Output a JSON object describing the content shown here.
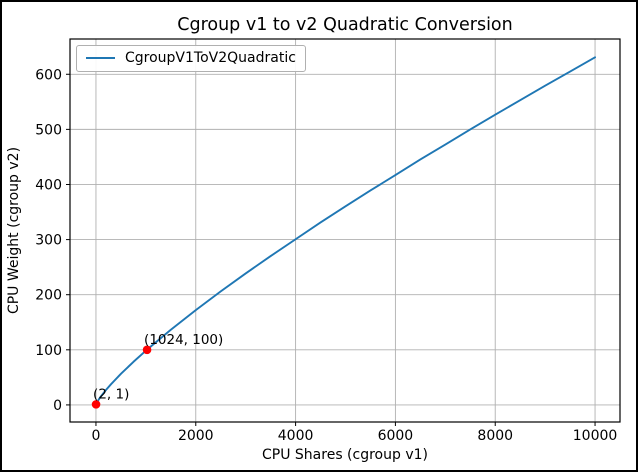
{
  "chart_data": {
    "type": "line",
    "title": "Cgroup v1 to v2 Quadratic Conversion",
    "xlabel": "CPU Shares (cgroup v1)",
    "ylabel": "CPU Weight (cgroup v2)",
    "grid": true,
    "legend_position": "upper left",
    "xlim": [
      -520,
      10500
    ],
    "ylim": [
      -31,
      664
    ],
    "xticks": [
      0,
      2000,
      4000,
      6000,
      8000,
      10000
    ],
    "yticks": [
      0,
      100,
      200,
      300,
      400,
      500,
      600
    ],
    "legend": {
      "entries": [
        {
          "label": "CgroupV1ToV2Quadratic",
          "color": "#1f77b4"
        }
      ]
    },
    "series": [
      {
        "name": "CgroupV1ToV2Quadratic",
        "color": "#1f77b4",
        "x": [
          2,
          50,
          100,
          200,
          300,
          500,
          750,
          1000,
          1024,
          1500,
          2000,
          2500,
          3000,
          3500,
          4000,
          4500,
          5000,
          5500,
          6000,
          6500,
          7000,
          7500,
          8000,
          8500,
          9000,
          9500,
          10000
        ],
        "y": [
          1.0,
          9.1,
          15.6,
          27.1,
          37.4,
          56.4,
          78.1,
          98.4,
          100.3,
          136.4,
          172.0,
          206.0,
          238.6,
          270.1,
          300.6,
          331.1,
          360.4,
          389.2,
          417.1,
          445.4,
          472.4,
          499.9,
          526.7,
          553.0,
          579.2,
          604.9,
          630.8
        ]
      }
    ],
    "annotated_points": [
      {
        "x": 2,
        "y": 1,
        "label": "(2, 1)",
        "marker_color": "#ff0000"
      },
      {
        "x": 1024,
        "y": 100,
        "label": "(1024, 100)",
        "marker_color": "#ff0000"
      }
    ],
    "colors": {
      "line": "#1f77b4",
      "marker": "#ff0000",
      "grid": "#b0b0b0",
      "spine": "#000000",
      "text": "#000000",
      "background": "#ffffff",
      "figure_border": "#000000"
    }
  }
}
